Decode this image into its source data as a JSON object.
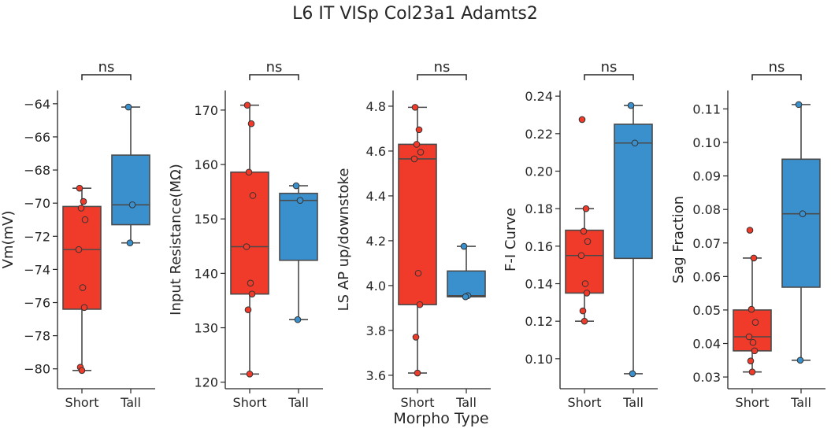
{
  "figure": {
    "title": "L6 IT VISp Col23a1 Adamts2",
    "shared_xlabel": "Morpho Type"
  },
  "colors": {
    "Short": "#f03a2a",
    "Tall": "#3a90cc",
    "axis": "#262626",
    "box_edge": "#4a4a4a"
  },
  "chart_data": [
    {
      "type": "box",
      "ylabel": "Vm(mV)",
      "categories": [
        "Short",
        "Tall"
      ],
      "significance": "ns",
      "ylim": [
        -81.2,
        -63.2
      ],
      "yticks": [
        -80,
        -78,
        -76,
        -74,
        -72,
        -70,
        -68,
        -66,
        -64
      ],
      "yticklabels": [
        "−80",
        "−78",
        "−76",
        "−74",
        "−72",
        "−70",
        "−68",
        "−66",
        "−64"
      ],
      "boxes": [
        {
          "name": "Short",
          "whislo": -80.1,
          "q1": -76.4,
          "med": -72.8,
          "q3": -70.2,
          "whishi": -69.1
        },
        {
          "name": "Tall",
          "whislo": -72.4,
          "q1": -71.3,
          "med": -70.1,
          "q3": -67.1,
          "whishi": -64.2
        }
      ],
      "points": [
        {
          "name": "Short",
          "values": [
            -69.1,
            -69.9,
            -70.3,
            -71.0,
            -72.8,
            -75.1,
            -76.3,
            -79.9,
            -80.1
          ]
        },
        {
          "name": "Tall",
          "values": [
            -64.2,
            -70.1,
            -72.4
          ]
        }
      ]
    },
    {
      "type": "box",
      "ylabel": "Input Resistance(MΩ)",
      "categories": [
        "Short",
        "Tall"
      ],
      "significance": "ns",
      "ylim": [
        118.8,
        173.6
      ],
      "yticks": [
        120,
        130,
        140,
        150,
        160,
        170
      ],
      "yticklabels": [
        "120",
        "130",
        "140",
        "150",
        "160",
        "170"
      ],
      "boxes": [
        {
          "name": "Short",
          "whislo": 121.5,
          "q1": 136.2,
          "med": 144.9,
          "q3": 158.6,
          "whishi": 170.9
        },
        {
          "name": "Tall",
          "whislo": 131.5,
          "q1": 142.4,
          "med": 153.4,
          "q3": 154.7,
          "whishi": 156.1
        }
      ],
      "points": [
        {
          "name": "Short",
          "values": [
            170.9,
            167.5,
            158.6,
            154.3,
            144.9,
            138.2,
            136.2,
            133.3,
            121.5
          ]
        },
        {
          "name": "Tall",
          "values": [
            156.1,
            153.4,
            131.5
          ]
        }
      ]
    },
    {
      "type": "box",
      "ylabel": "LS AP up/downstoke",
      "categories": [
        "Short",
        "Tall"
      ],
      "significance": "ns",
      "ylim": [
        3.54,
        4.87
      ],
      "yticks": [
        3.6,
        3.8,
        4.0,
        4.2,
        4.4,
        4.6,
        4.8
      ],
      "yticklabels": [
        "3.6",
        "3.8",
        "4.0",
        "4.2",
        "4.4",
        "4.6",
        "4.8"
      ],
      "boxes": [
        {
          "name": "Short",
          "whislo": 3.61,
          "q1": 3.915,
          "med": 4.565,
          "q3": 4.63,
          "whishi": 4.795
        },
        {
          "name": "Tall",
          "whislo": 3.95,
          "q1": 3.95,
          "med": 3.955,
          "q3": 4.065,
          "whishi": 4.175
        }
      ],
      "points": [
        {
          "name": "Short",
          "values": [
            4.795,
            4.695,
            4.63,
            4.595,
            4.565,
            4.055,
            3.915,
            3.77,
            3.61
          ]
        },
        {
          "name": "Tall",
          "values": [
            4.175,
            3.955,
            3.95
          ]
        }
      ]
    },
    {
      "type": "box",
      "ylabel": "F-I Curve",
      "categories": [
        "Short",
        "Tall"
      ],
      "significance": "ns",
      "ylim": [
        0.084,
        0.243
      ],
      "yticks": [
        0.1,
        0.12,
        0.14,
        0.16,
        0.18,
        0.2,
        0.22,
        0.24
      ],
      "yticklabels": [
        "0.10",
        "0.12",
        "0.14",
        "0.16",
        "0.18",
        "0.20",
        "0.22",
        "0.24"
      ],
      "boxes": [
        {
          "name": "Short",
          "whislo": 0.12,
          "q1": 0.135,
          "med": 0.155,
          "q3": 0.1685,
          "whishi": 0.18
        },
        {
          "name": "Tall",
          "whislo": 0.092,
          "q1": 0.1535,
          "med": 0.215,
          "q3": 0.225,
          "whishi": 0.235
        }
      ],
      "points": [
        {
          "name": "Short",
          "values": [
            0.2275,
            0.18,
            0.168,
            0.1625,
            0.155,
            0.14,
            0.135,
            0.1255,
            0.12
          ]
        },
        {
          "name": "Tall",
          "values": [
            0.235,
            0.215,
            0.092
          ]
        }
      ]
    },
    {
      "type": "box",
      "ylabel": "Sag Fraction",
      "categories": [
        "Short",
        "Tall"
      ],
      "significance": "ns",
      "ylim": [
        0.0265,
        0.1155
      ],
      "yticks": [
        0.03,
        0.04,
        0.05,
        0.06,
        0.07,
        0.08,
        0.09,
        0.1,
        0.11
      ],
      "yticklabels": [
        "0.03",
        "0.04",
        "0.05",
        "0.06",
        "0.07",
        "0.08",
        "0.09",
        "0.10",
        "0.11"
      ],
      "boxes": [
        {
          "name": "Short",
          "whislo": 0.0315,
          "q1": 0.0378,
          "med": 0.042,
          "q3": 0.05,
          "whishi": 0.0655
        },
        {
          "name": "Tall",
          "whislo": 0.035,
          "q1": 0.0568,
          "med": 0.0787,
          "q3": 0.095,
          "whishi": 0.1113
        }
      ],
      "points": [
        {
          "name": "Short",
          "values": [
            0.0738,
            0.0655,
            0.0502,
            0.0463,
            0.042,
            0.0403,
            0.0378,
            0.0348,
            0.0315
          ]
        },
        {
          "name": "Tall",
          "values": [
            0.1113,
            0.0787,
            0.035
          ]
        }
      ]
    }
  ]
}
